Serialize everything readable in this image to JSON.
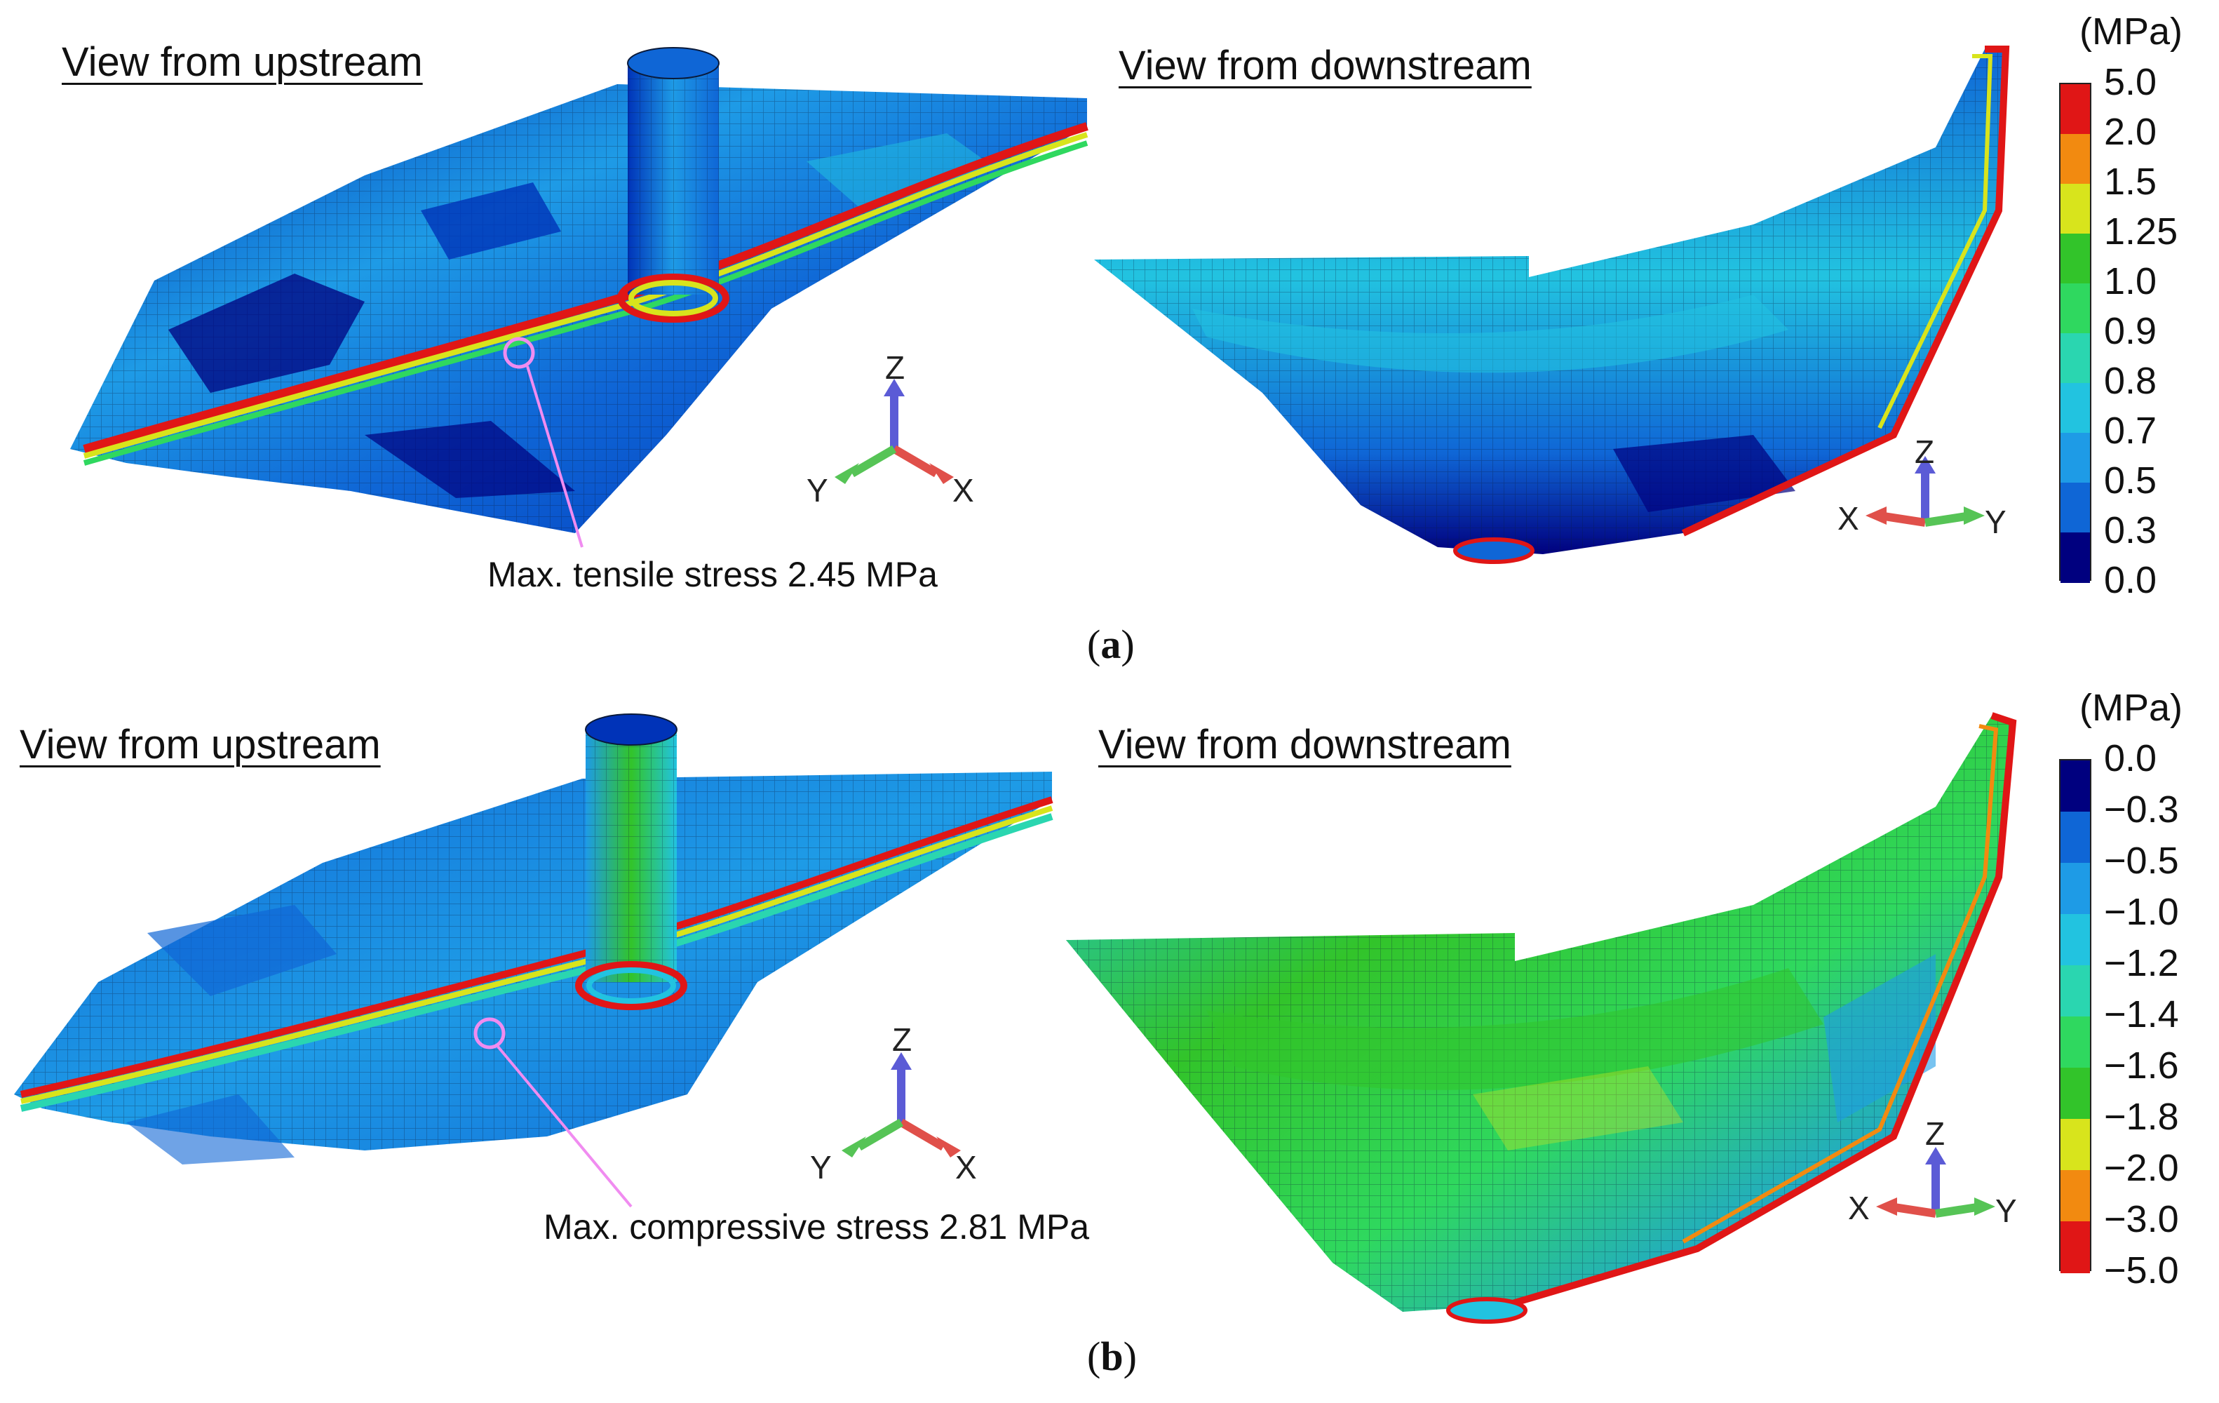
{
  "colors": {
    "scale": [
      "#00007f",
      "#0033b8",
      "#0f66d6",
      "#1e9be6",
      "#22c3e0",
      "#2ad6b0",
      "#2fd85f",
      "#32c42a",
      "#d8e41c",
      "#f28a10",
      "#e01616"
    ],
    "mesh_line": "#0a1a3a",
    "leader": "#f08cf0",
    "axis_x": "#e0504a",
    "axis_y": "#56c456",
    "axis_z": "#5b5bd6"
  },
  "panel_a": {
    "label_letter": "a",
    "left_view_title": "View from upstream",
    "right_view_title": "View from downstream",
    "annotation": "Max. tensile stress 2.45 MPa",
    "legend": {
      "unit": "(MPa)",
      "ticks": [
        "5.0",
        "2.0",
        "1.5",
        "1.25",
        "1.0",
        "0.9",
        "0.8",
        "0.7",
        "0.5",
        "0.3",
        "0.0"
      ],
      "swatch_colors_top_to_bottom": [
        "#e01616",
        "#f28a10",
        "#d8e41c",
        "#32c42a",
        "#2fd85f",
        "#2ad6b0",
        "#22c3e0",
        "#1e9be6",
        "#0f66d6",
        "#00007f"
      ]
    },
    "axes_left": {
      "z": "Z",
      "x": "X",
      "y": "Y"
    },
    "axes_right": {
      "z": "Z",
      "x": "X",
      "y": "Y"
    }
  },
  "panel_b": {
    "label_letter": "b",
    "left_view_title": "View from upstream",
    "right_view_title": "View from downstream",
    "annotation": "Max. compressive stress 2.81 MPa",
    "legend": {
      "unit": "(MPa)",
      "ticks": [
        "0.0",
        "−0.3",
        "−0.5",
        "−1.0",
        "−1.2",
        "−1.4",
        "−1.6",
        "−1.8",
        "−2.0",
        "−3.0",
        "−5.0"
      ],
      "swatch_colors_top_to_bottom": [
        "#00007f",
        "#0f66d6",
        "#1e9be6",
        "#22c3e0",
        "#2ad6b0",
        "#2fd85f",
        "#32c42a",
        "#d8e41c",
        "#f28a10",
        "#e01616"
      ]
    },
    "axes_left": {
      "z": "Z",
      "x": "X",
      "y": "Y"
    },
    "axes_right": {
      "z": "Z",
      "x": "X",
      "y": "Y"
    }
  }
}
